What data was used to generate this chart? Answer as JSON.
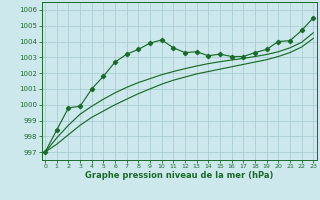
{
  "xlabel": "Graphe pression niveau de la mer (hPa)",
  "bg_color": "#cde8ec",
  "grid_color": "#aacdd4",
  "line_color": "#1a6b2a",
  "ylim": [
    996.5,
    1006.5
  ],
  "xlim": [
    -0.3,
    23.3
  ],
  "yticks": [
    997,
    998,
    999,
    1000,
    1001,
    1002,
    1003,
    1004,
    1005,
    1006
  ],
  "xticks": [
    0,
    1,
    2,
    3,
    4,
    5,
    6,
    7,
    8,
    9,
    10,
    11,
    12,
    13,
    14,
    15,
    16,
    17,
    18,
    19,
    20,
    21,
    22,
    23
  ],
  "series_marker": [
    997.0,
    998.4,
    999.8,
    999.9,
    1001.0,
    1001.8,
    1002.7,
    1003.2,
    1003.5,
    1003.9,
    1004.1,
    1003.6,
    1003.3,
    1003.35,
    1003.1,
    1003.2,
    1003.05,
    1003.05,
    1003.3,
    1003.5,
    1004.0,
    1004.05,
    1004.7,
    1005.5
  ],
  "series_smooth1": [
    997.0,
    997.5,
    998.1,
    998.7,
    999.2,
    999.6,
    1000.0,
    1000.35,
    1000.7,
    1001.0,
    1001.3,
    1001.55,
    1001.75,
    1001.95,
    1002.1,
    1002.25,
    1002.4,
    1002.55,
    1002.7,
    1002.85,
    1003.05,
    1003.3,
    1003.65,
    1004.2
  ],
  "series_smooth2": [
    997.0,
    997.9,
    998.7,
    999.4,
    999.9,
    1000.35,
    1000.75,
    1001.1,
    1001.4,
    1001.65,
    1001.9,
    1002.1,
    1002.28,
    1002.45,
    1002.6,
    1002.72,
    1002.83,
    1002.93,
    1003.05,
    1003.18,
    1003.35,
    1003.6,
    1003.95,
    1004.55
  ]
}
